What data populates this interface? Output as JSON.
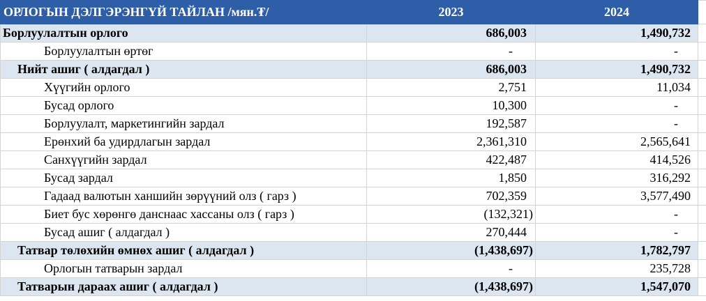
{
  "table": {
    "header": [
      "ОРЛОГЫН ДЭЛГЭРЭНГҮЙ ТАЙЛАН /мян.₮/",
      "2023",
      "2024"
    ],
    "rows": [
      {
        "label": "Борлуулалтын орлого",
        "values": [
          "686,003",
          "1,490,732"
        ],
        "emphasis": true,
        "level": 0
      },
      {
        "label": "Борлуулалтын өртөг",
        "values": [
          "-",
          "-"
        ],
        "emphasis": false,
        "level": 2
      },
      {
        "label": "Нийт ашиг ( алдагдал )",
        "values": [
          "686,003",
          "1,490,732"
        ],
        "emphasis": true,
        "level": 1
      },
      {
        "label": "Хүүгийн орлого",
        "values": [
          "2,751",
          "11,034"
        ],
        "emphasis": false,
        "level": 2
      },
      {
        "label": "Бусад орлого",
        "values": [
          "10,300",
          "-"
        ],
        "emphasis": false,
        "level": 2
      },
      {
        "label": "Борлуулалт, маркетингийн зардал",
        "values": [
          "192,587",
          "-"
        ],
        "emphasis": false,
        "level": 2
      },
      {
        "label": "Ерөнхий ба удирдлагын зардал",
        "values": [
          "2,361,310",
          "2,565,641"
        ],
        "emphasis": false,
        "level": 2
      },
      {
        "label": "Санхүүгийн зардал",
        "values": [
          "422,487",
          "414,526"
        ],
        "emphasis": false,
        "level": 2
      },
      {
        "label": "Бусад зардал",
        "values": [
          "1,850",
          "316,292"
        ],
        "emphasis": false,
        "level": 2
      },
      {
        "label": "Гадаад валютын ханшийн зөрүүний олз ( гарз )",
        "values": [
          "702,359",
          "3,577,490"
        ],
        "emphasis": false,
        "level": 2
      },
      {
        "label": "Биет бус хөрөнгө данснаас хассаны олз ( гарз )",
        "values": [
          "(132,321)",
          "-"
        ],
        "emphasis": false,
        "level": 2
      },
      {
        "label": "Бусад ашиг ( алдагдал )",
        "values": [
          "270,444",
          "-"
        ],
        "emphasis": false,
        "level": 2
      },
      {
        "label": "Татвар төлөхийн өмнөх ашиг ( алдагдал )",
        "values": [
          "(1,438,697)",
          "1,782,797"
        ],
        "emphasis": true,
        "level": 1
      },
      {
        "label": "Орлогын татварын зардал",
        "values": [
          "-",
          "235,728"
        ],
        "emphasis": false,
        "level": 2
      },
      {
        "label": "Татварын дараах ашиг ( алдагдал )",
        "values": [
          "(1,438,697)",
          "1,547,070"
        ],
        "emphasis": true,
        "level": 1
      }
    ]
  }
}
